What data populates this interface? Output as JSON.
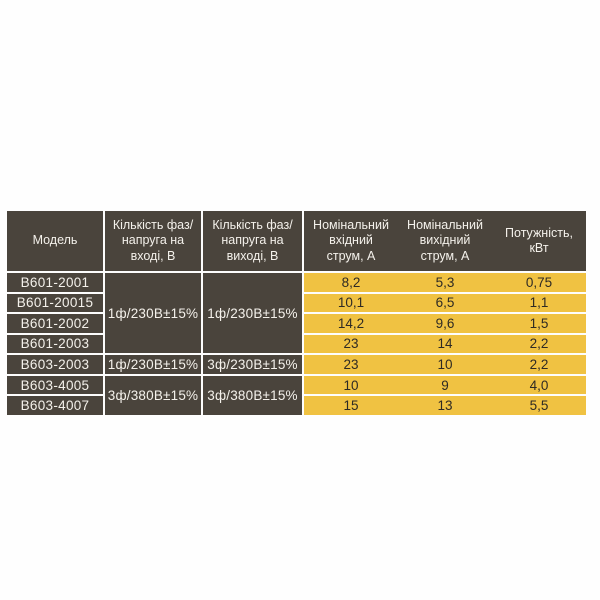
{
  "colors": {
    "cell_dark": "#4a443c",
    "cell_yellow": "#f0c242",
    "gridline": "#fdfdfd",
    "text_light": "#f4f1eb",
    "text_dark": "#2e2a24",
    "page_background": "#fefefe"
  },
  "table": {
    "headers": {
      "model": "Модель",
      "input_phase": "Кількість фаз/напруга на вході, В",
      "output_phase": "Кількість фаз/напруга на виході, В",
      "input_current": "Номінальний вхідний струм, А",
      "output_current": "Номінальний вихідний струм, А",
      "power": "Потужність, кВт"
    },
    "voltage_cells": {
      "group1_input": "1ф/230В±15%",
      "group1_output": "1ф/230В±15%",
      "row5_input": "1ф/230В±15%",
      "row5_output": "3ф/230В±15%",
      "group2_input": "3ф/380В±15%",
      "group2_output": "3ф/380В±15%"
    },
    "rows": [
      {
        "model": "B601-2001",
        "in_a": "8,2",
        "out_a": "5,3",
        "kw": "0,75"
      },
      {
        "model": "B601-20015",
        "in_a": "10,1",
        "out_a": "6,5",
        "kw": "1,1"
      },
      {
        "model": "B601-2002",
        "in_a": "14,2",
        "out_a": "9,6",
        "kw": "1,5"
      },
      {
        "model": "B601-2003",
        "in_a": "23",
        "out_a": "14",
        "kw": "2,2"
      },
      {
        "model": "B603-2003",
        "in_a": "23",
        "out_a": "10",
        "kw": "2,2"
      },
      {
        "model": "B603-4005",
        "in_a": "10",
        "out_a": "9",
        "kw": "4,0"
      },
      {
        "model": "B603-4007",
        "in_a": "15",
        "out_a": "13",
        "kw": "5,5"
      }
    ]
  },
  "chart_data": {
    "type": "table",
    "title": "",
    "columns": [
      "Модель",
      "Кількість фаз/напруга на вході, В",
      "Кількість фаз/напруга на виході, В",
      "Номінальний вхідний струм, А",
      "Номінальний вихідний струм, А",
      "Потужність, кВт"
    ],
    "rows": [
      [
        "B601-2001",
        "1ф/230В±15%",
        "1ф/230В±15%",
        "8,2",
        "5,3",
        "0,75"
      ],
      [
        "B601-20015",
        "1ф/230В±15%",
        "1ф/230В±15%",
        "10,1",
        "6,5",
        "1,1"
      ],
      [
        "B601-2002",
        "1ф/230В±15%",
        "1ф/230В±15%",
        "14,2",
        "9,6",
        "1,5"
      ],
      [
        "B601-2003",
        "1ф/230В±15%",
        "1ф/230В±15%",
        "23",
        "14",
        "2,2"
      ],
      [
        "B603-2003",
        "1ф/230В±15%",
        "3ф/230В±15%",
        "23",
        "10",
        "2,2"
      ],
      [
        "B603-4005",
        "3ф/380В±15%",
        "3ф/380В±15%",
        "10",
        "9",
        "4,0"
      ],
      [
        "B603-4007",
        "3ф/380В±15%",
        "3ф/380В±15%",
        "15",
        "13",
        "5,5"
      ]
    ],
    "merged_cells": [
      {
        "column": "Кількість фаз/напруга на вході, В",
        "rows": [
          1,
          4
        ],
        "value": "1ф/230В±15%"
      },
      {
        "column": "Кількість фаз/напруга на виході, В",
        "rows": [
          1,
          4
        ],
        "value": "1ф/230В±15%"
      },
      {
        "column": "Кількість фаз/напруга на вході, В",
        "rows": [
          6,
          7
        ],
        "value": "3ф/380В±15%"
      },
      {
        "column": "Кількість фаз/напруга на виході, В",
        "rows": [
          6,
          7
        ],
        "value": "3ф/380В±15%"
      }
    ],
    "layout": {
      "header_background": "dark",
      "data_numeric_zone_background": "yellow",
      "vertical_dividers_in_numeric_zone": false
    }
  }
}
